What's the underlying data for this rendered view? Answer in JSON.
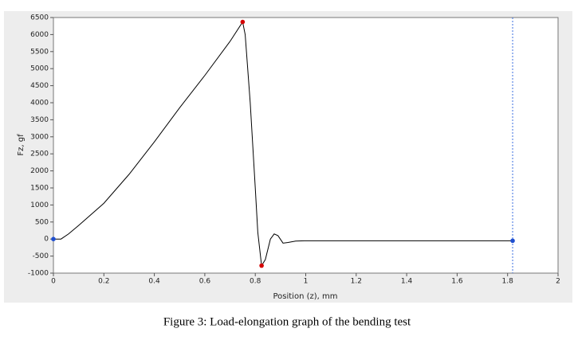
{
  "chart_data": {
    "type": "line",
    "xlabel": "Position (z), mm",
    "ylabel": "Fz, gf",
    "series": [
      {
        "color": "#000000",
        "x": [
          0,
          0.03,
          0.06,
          0.1,
          0.2,
          0.3,
          0.4,
          0.5,
          0.6,
          0.7,
          0.75,
          0.76,
          0.78,
          0.8,
          0.81,
          0.825,
          0.84,
          0.86,
          0.875,
          0.89,
          0.91,
          0.93,
          0.96,
          1.0,
          1.82
        ],
        "values": [
          0,
          0,
          150,
          400,
          1050,
          1900,
          2850,
          3850,
          4800,
          5800,
          6370,
          6000,
          4000,
          1500,
          200,
          -780,
          -600,
          0,
          150,
          100,
          -120,
          -100,
          -60,
          -50,
          -50
        ]
      }
    ],
    "extreme_points": {
      "color": "#d40000",
      "x": [
        0.75,
        0.825
      ],
      "values": [
        6370,
        -780
      ]
    },
    "cursor_points": {
      "color": "#1f4fd0",
      "x": [
        0,
        1.82
      ],
      "values": [
        0,
        -50
      ]
    },
    "cursor_x": 1.82,
    "xlim": [
      0,
      2
    ],
    "xticks": [
      0,
      0.2,
      0.4,
      0.6,
      0.8,
      1,
      1.2,
      1.4,
      1.6,
      1.8,
      2
    ],
    "ylim": [
      -1000,
      6500
    ],
    "yticks": [
      -1000,
      -500,
      0,
      500,
      1000,
      1500,
      2000,
      2500,
      3000,
      3500,
      4000,
      4500,
      5000,
      5500,
      6000,
      6500
    ]
  },
  "caption": "Figure 3: Load-elongation graph of the bending test"
}
